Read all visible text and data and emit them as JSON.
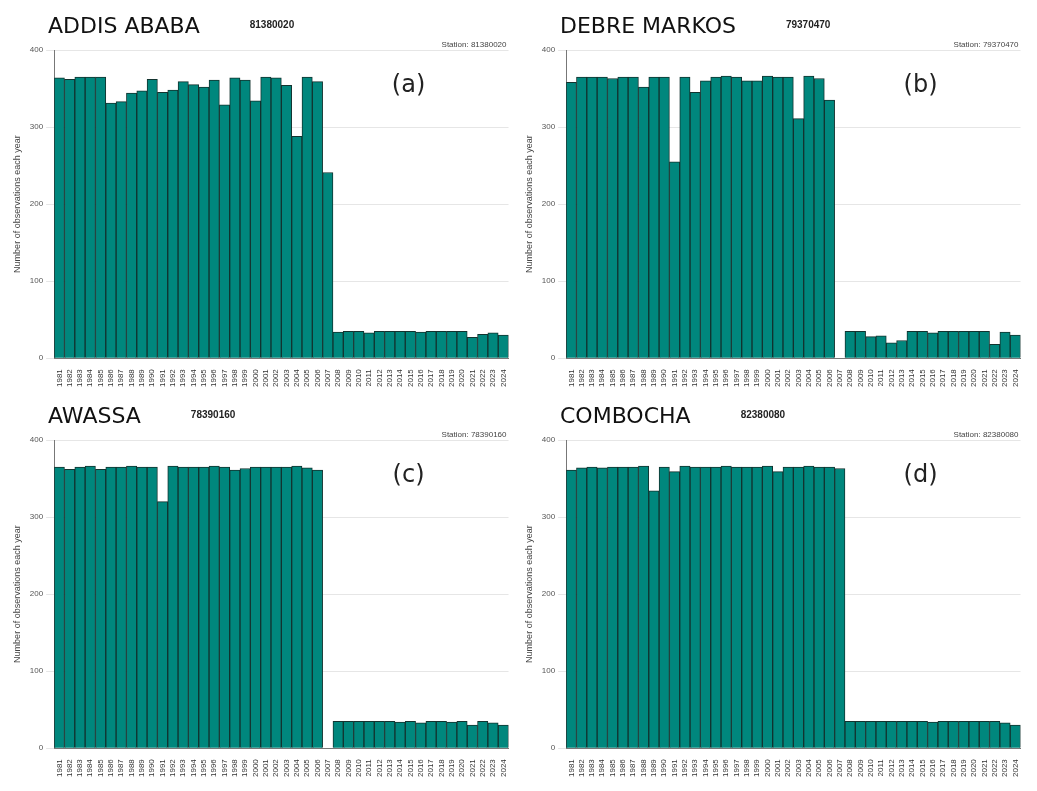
{
  "chart_data": [
    {
      "type": "bar",
      "title": "ADDIS ABABA",
      "subtitle": "81380020",
      "ylabel": "Number of observations each year",
      "annotations": [
        "(a)",
        "Station: 81380020"
      ],
      "color": "#00877d",
      "grid": "y",
      "ylim": [
        0,
        400
      ],
      "yticks": [
        0,
        100,
        200,
        300,
        400
      ],
      "categories": [
        "1981",
        "1982",
        "1983",
        "1984",
        "1985",
        "1986",
        "1987",
        "1988",
        "1989",
        "1990",
        "1991",
        "1992",
        "1993",
        "1994",
        "1995",
        "1996",
        "1997",
        "1998",
        "1999",
        "2000",
        "2001",
        "2002",
        "2003",
        "2004",
        "2005",
        "2006",
        "2007",
        "2008",
        "2009",
        "2010",
        "2011",
        "2012",
        "2013",
        "2014",
        "2015",
        "2016",
        "2017",
        "2018",
        "2019",
        "2020",
        "2021",
        "2022",
        "2023",
        "2024"
      ],
      "values": [
        364,
        362,
        365,
        365,
        365,
        331,
        333,
        344,
        347,
        362,
        345,
        348,
        359,
        355,
        352,
        361,
        329,
        364,
        361,
        334,
        365,
        364,
        354,
        288,
        365,
        359,
        241,
        34,
        35,
        35,
        33,
        35,
        35,
        35,
        35,
        34,
        35,
        35,
        35,
        35,
        27,
        31,
        33,
        30
      ]
    },
    {
      "type": "bar",
      "title": "DEBRE MARKOS",
      "subtitle": "79370470",
      "ylabel": "Number of observations each year",
      "annotations": [
        "(b)",
        "Station: 79370470"
      ],
      "color": "#00877d",
      "grid": "y",
      "ylim": [
        0,
        400
      ],
      "yticks": [
        0,
        100,
        200,
        300,
        400
      ],
      "categories": [
        "1981",
        "1982",
        "1983",
        "1984",
        "1985",
        "1986",
        "1987",
        "1988",
        "1989",
        "1990",
        "1991",
        "1992",
        "1993",
        "1994",
        "1995",
        "1996",
        "1997",
        "1998",
        "1999",
        "2000",
        "2001",
        "2002",
        "2003",
        "2004",
        "2005",
        "2006",
        "2007",
        "2008",
        "2009",
        "2010",
        "2011",
        "2012",
        "2013",
        "2014",
        "2015",
        "2016",
        "2017",
        "2018",
        "2019",
        "2020",
        "2021",
        "2022",
        "2023",
        "2024"
      ],
      "values": [
        358,
        365,
        365,
        365,
        363,
        365,
        365,
        352,
        365,
        365,
        255,
        365,
        345,
        360,
        365,
        366,
        365,
        360,
        360,
        366,
        365,
        365,
        311,
        366,
        363,
        335,
        null,
        35,
        35,
        28,
        29,
        20,
        23,
        35,
        35,
        33,
        35,
        35,
        35,
        35,
        35,
        18,
        34,
        30
      ]
    },
    {
      "type": "bar",
      "title": "AWASSA",
      "subtitle": "78390160",
      "ylabel": "Number of observations each year",
      "annotations": [
        "(c)",
        "Station: 78390160"
      ],
      "color": "#00877d",
      "grid": "y",
      "ylim": [
        0,
        400
      ],
      "yticks": [
        0,
        100,
        200,
        300,
        400
      ],
      "categories": [
        "1981",
        "1982",
        "1983",
        "1984",
        "1985",
        "1986",
        "1987",
        "1988",
        "1989",
        "1990",
        "1991",
        "1992",
        "1993",
        "1994",
        "1995",
        "1996",
        "1997",
        "1998",
        "1999",
        "2000",
        "2001",
        "2002",
        "2003",
        "2004",
        "2005",
        "2006",
        "2007",
        "2008",
        "2009",
        "2010",
        "2011",
        "2012",
        "2013",
        "2014",
        "2015",
        "2016",
        "2017",
        "2018",
        "2019",
        "2020",
        "2021",
        "2022",
        "2023",
        "2024"
      ],
      "values": [
        365,
        362,
        365,
        366,
        362,
        365,
        365,
        366,
        365,
        365,
        320,
        366,
        365,
        365,
        365,
        366,
        365,
        361,
        363,
        365,
        365,
        365,
        365,
        366,
        364,
        361,
        null,
        35,
        35,
        35,
        35,
        35,
        35,
        34,
        35,
        33,
        35,
        35,
        34,
        35,
        30,
        35,
        33,
        30
      ]
    },
    {
      "type": "bar",
      "title": "COMBOCHA",
      "subtitle": "82380080",
      "ylabel": "Number of observations each year",
      "annotations": [
        "(d)",
        "Station: 82380080"
      ],
      "color": "#00877d",
      "grid": "y",
      "ylim": [
        0,
        400
      ],
      "yticks": [
        0,
        100,
        200,
        300,
        400
      ],
      "categories": [
        "1981",
        "1982",
        "1983",
        "1984",
        "1985",
        "1986",
        "1987",
        "1988",
        "1989",
        "1990",
        "1991",
        "1992",
        "1993",
        "1994",
        "1995",
        "1996",
        "1997",
        "1998",
        "1999",
        "2000",
        "2001",
        "2002",
        "2003",
        "2004",
        "2005",
        "2006",
        "2007",
        "2008",
        "2009",
        "2010",
        "2011",
        "2012",
        "2013",
        "2014",
        "2015",
        "2016",
        "2017",
        "2018",
        "2019",
        "2020",
        "2021",
        "2022",
        "2023",
        "2024"
      ],
      "values": [
        361,
        364,
        365,
        364,
        365,
        365,
        365,
        366,
        334,
        365,
        359,
        366,
        365,
        365,
        365,
        366,
        365,
        365,
        365,
        366,
        359,
        365,
        365,
        366,
        365,
        365,
        363,
        35,
        35,
        35,
        35,
        35,
        35,
        35,
        35,
        34,
        35,
        35,
        35,
        35,
        35,
        35,
        33,
        30
      ]
    }
  ]
}
